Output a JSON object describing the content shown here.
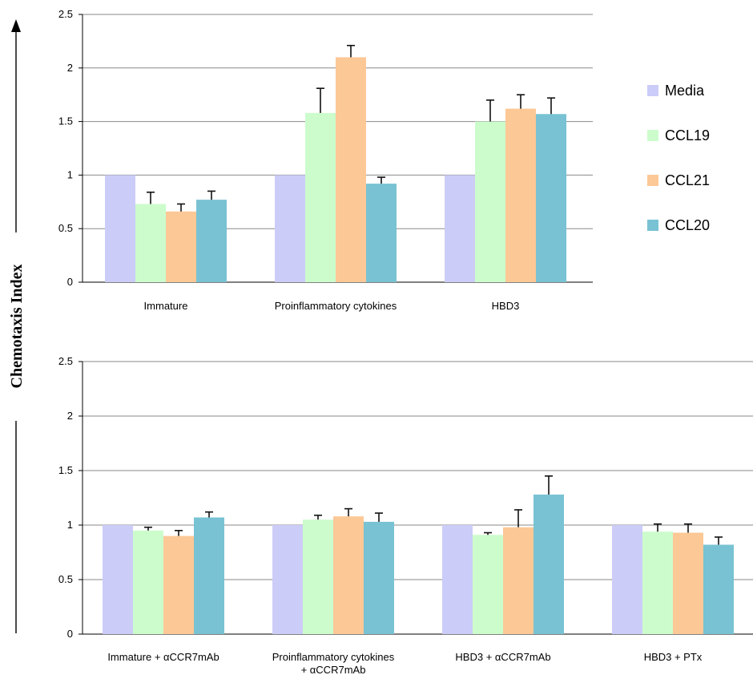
{
  "y_axis_title": "Chemotaxis Index",
  "legend": {
    "items": [
      {
        "label": "Media",
        "color": "#ccccf8"
      },
      {
        "label": "CCL19",
        "color": "#ccfccc"
      },
      {
        "label": "CCL21",
        "color": "#fcc896"
      },
      {
        "label": "CCL20",
        "color": "#78c2d3"
      }
    ]
  },
  "chart_data": [
    {
      "type": "bar",
      "ylabel": "Chemotaxis Index",
      "ylim": [
        0,
        2.5
      ],
      "yticks": [
        "0",
        "0.5",
        "1",
        "1.5",
        "2",
        "2.5"
      ],
      "grid": true,
      "legend_position": "right",
      "categories": [
        [
          "Immature"
        ],
        [
          "Proinflammatory cytokines"
        ],
        [
          "HBD3"
        ]
      ],
      "series": [
        {
          "name": "Media",
          "values": [
            1.0,
            1.0,
            1.0
          ],
          "errors": [
            0,
            0,
            0
          ]
        },
        {
          "name": "CCL19",
          "values": [
            0.73,
            1.58,
            1.5
          ],
          "errors": [
            0.11,
            0.23,
            0.2
          ]
        },
        {
          "name": "CCL21",
          "values": [
            0.66,
            2.1,
            1.62
          ],
          "errors": [
            0.07,
            0.11,
            0.13
          ]
        },
        {
          "name": "CCL20",
          "values": [
            0.77,
            0.92,
            1.57
          ],
          "errors": [
            0.08,
            0.06,
            0.15
          ]
        }
      ]
    },
    {
      "type": "bar",
      "ylabel": "Chemotaxis Index",
      "ylim": [
        0,
        2.5
      ],
      "yticks": [
        "0",
        "0.5",
        "1",
        "1.5",
        "2",
        "2.5"
      ],
      "grid": true,
      "categories": [
        [
          "Immature + αCCR7mAb"
        ],
        [
          "Proinflammatory cytokines",
          "+ αCCR7mAb"
        ],
        [
          "HBD3 + αCCR7mAb"
        ],
        [
          "HBD3 + PTx"
        ]
      ],
      "series": [
        {
          "name": "Media",
          "values": [
            1.0,
            1.0,
            1.0,
            1.0
          ],
          "errors": [
            0,
            0,
            0,
            0
          ]
        },
        {
          "name": "CCL19",
          "values": [
            0.95,
            1.05,
            0.91,
            0.94
          ],
          "errors": [
            0.03,
            0.04,
            0.02,
            0.07
          ]
        },
        {
          "name": "CCL21",
          "values": [
            0.9,
            1.08,
            0.98,
            0.93
          ],
          "errors": [
            0.05,
            0.07,
            0.16,
            0.08
          ]
        },
        {
          "name": "CCL20",
          "values": [
            1.07,
            1.03,
            1.28,
            0.82
          ],
          "errors": [
            0.05,
            0.08,
            0.17,
            0.07
          ]
        }
      ]
    }
  ]
}
